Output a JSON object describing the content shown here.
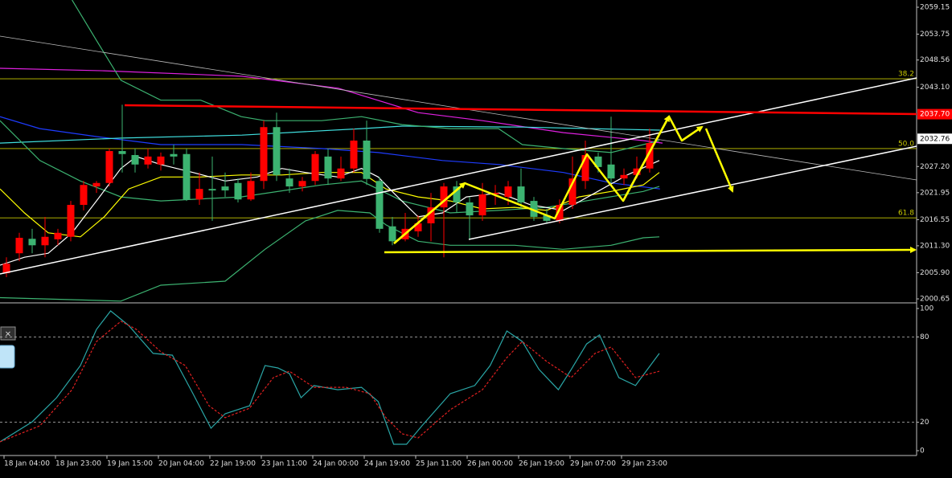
{
  "chart_data": [
    {
      "type": "candlestick",
      "xlim": [
        -0.5,
        70.75
      ],
      "ylim": [
        2000.17,
        2060.6
      ],
      "up_color": "#ff0000",
      "down_color": "#3cb371",
      "candles": {
        "open": [
          2005.8,
          2009.8,
          2012.7,
          2011.4,
          2012.6,
          2013.1,
          2019.5,
          2023.2,
          2023.9,
          2030.3,
          2029.5,
          2027.6,
          2027.6,
          2029.7,
          2029.7,
          2020.6,
          2022.7,
          2023.2,
          2023.9,
          2020.6,
          2024.3,
          2035.1,
          2024.8,
          2023.2,
          2024.3,
          2029.2,
          2024.8,
          2026.8,
          2032.4,
          2024.3,
          2015.2,
          2012.6,
          2014.2,
          2015.8,
          2019.0,
          2023.2,
          2020.0,
          2017.4,
          2021.6,
          2021.1,
          2023.2,
          2020.3,
          2017.4,
          2016.3,
          2019.5,
          2024.3,
          2029.2,
          2027.6,
          2024.8,
          2025.5,
          2026.8
        ],
        "high": [
          2009.0,
          2013.9,
          2014.7,
          2017.1,
          2014.7,
          2020.3,
          2024.3,
          2024.3,
          2030.8,
          2039.6,
          2030.8,
          2030.8,
          2030.0,
          2031.6,
          2030.8,
          2026.0,
          2029.2,
          2026.0,
          2024.8,
          2026.0,
          2036.4,
          2038.0,
          2026.8,
          2025.1,
          2030.3,
          2030.8,
          2029.2,
          2034.8,
          2036.4,
          2025.1,
          2017.1,
          2017.9,
          2017.4,
          2021.9,
          2023.9,
          2024.3,
          2021.1,
          2023.9,
          2023.5,
          2024.3,
          2026.8,
          2021.1,
          2018.7,
          2020.6,
          2029.2,
          2032.4,
          2030.0,
          2037.2,
          2026.8,
          2029.2,
          2034.8
        ],
        "low": [
          2005.0,
          2008.2,
          2009.8,
          2009.0,
          2011.4,
          2012.2,
          2018.4,
          2021.9,
          2023.2,
          2026.0,
          2026.0,
          2026.8,
          2026.4,
          2027.6,
          2020.3,
          2019.5,
          2016.3,
          2021.1,
          2020.0,
          2020.3,
          2022.7,
          2024.3,
          2021.9,
          2022.2,
          2023.5,
          2023.5,
          2024.3,
          2026.0,
          2023.5,
          2013.9,
          2011.4,
          2012.2,
          2013.1,
          2012.2,
          2009.0,
          2017.9,
          2012.6,
          2016.3,
          2019.5,
          2019.5,
          2018.7,
          2016.3,
          2015.8,
          2015.8,
          2018.7,
          2022.7,
          2026.0,
          2023.9,
          2023.5,
          2024.8,
          2026.0
        ],
        "close": [
          2007.7,
          2012.9,
          2011.4,
          2013.1,
          2013.9,
          2019.5,
          2023.5,
          2023.9,
          2030.3,
          2029.7,
          2027.6,
          2029.2,
          2029.2,
          2029.2,
          2020.6,
          2022.7,
          2022.4,
          2022.4,
          2020.6,
          2024.3,
          2035.1,
          2025.5,
          2023.2,
          2024.3,
          2029.7,
          2024.8,
          2026.8,
          2032.4,
          2024.7,
          2014.7,
          2012.2,
          2014.7,
          2015.8,
          2019.0,
          2023.2,
          2020.0,
          2017.4,
          2021.6,
          2021.9,
          2023.2,
          2020.0,
          2017.1,
          2016.3,
          2019.5,
          2024.8,
          2029.5,
          2027.1,
          2024.8,
          2025.5,
          2026.8,
          2031.9
        ]
      },
      "series": [
        {
          "color": "#e020e0",
          "x": [
            -0.5,
            7.6,
            18.3,
            25.8,
            32,
            37,
            43.3,
            49.5,
            51
          ],
          "values": [
            2046.9,
            2046.4,
            2045.3,
            2042.9,
            2038.0,
            2036.4,
            2034.0,
            2032.4,
            2031.9
          ]
        },
        {
          "color": "#1e3cff",
          "x": [
            -0.5,
            2.6,
            7,
            12,
            18.3,
            24.5,
            28.9,
            33.9,
            38.3,
            43.3,
            47,
            50.8
          ],
          "values": [
            2037.2,
            2034.8,
            2033.2,
            2031.6,
            2031.6,
            2030.8,
            2030.0,
            2028.4,
            2027.6,
            2026.0,
            2023.9,
            2022.7
          ]
        },
        {
          "color": "#40e0e0",
          "x": [
            -0.5,
            8.9,
            18.3,
            27.6,
            30.75,
            40.1,
            50.8
          ],
          "values": [
            2031.9,
            2032.9,
            2033.5,
            2034.8,
            2035.3,
            2035.1,
            2034.5
          ]
        },
        {
          "color": "#3cb371",
          "x": [
            5.1,
            7,
            8.9,
            12,
            15.1,
            18.25,
            20.1,
            24.5,
            27.6,
            30.75,
            34.5,
            38.25,
            40.1,
            43.25,
            47,
            49.5,
            50.75
          ],
          "values": [
            2060.6,
            2052.5,
            2044.5,
            2040.5,
            2040.5,
            2037.2,
            2036.4,
            2036.4,
            2037.2,
            2035.6,
            2034.8,
            2034.8,
            2031.6,
            2030.8,
            2030.0,
            2031.6,
            2032.4
          ]
        },
        {
          "color": "#3cb371",
          "x": [
            -0.5,
            2.6,
            5.75,
            8.9,
            12,
            18.25,
            24.5,
            27.6,
            30.75,
            34.5,
            38.25,
            42,
            45.75,
            49.5,
            50.75
          ],
          "values": [
            2036.4,
            2028.4,
            2024.3,
            2021.1,
            2020.3,
            2021.1,
            2023.5,
            2024.3,
            2020.3,
            2017.9,
            2018.4,
            2019.0,
            2020.6,
            2022.2,
            2023.2
          ]
        },
        {
          "color": "#3cb371",
          "x": [
            -0.5,
            8.9,
            12,
            17,
            20.1,
            23.25,
            25.75,
            28.25,
            29.5,
            32,
            34.5,
            39.5,
            43.25,
            47,
            49.5,
            50.75
          ],
          "values": [
            2000.9,
            2000.2,
            2003.4,
            2004.2,
            2010.6,
            2016.3,
            2018.4,
            2017.9,
            2015.5,
            2012.2,
            2011.4,
            2011.4,
            2010.6,
            2011.4,
            2012.9,
            2013.1
          ]
        },
        {
          "color": "#ffff00",
          "x": [
            -0.5,
            1.4,
            3.25,
            5.75,
            7.6,
            9.5,
            12,
            15.1,
            18.25,
            21.4,
            24.5,
            27.6,
            29.5,
            32,
            34.5,
            37,
            39.5,
            42,
            44.5,
            47,
            49.5,
            50.75
          ],
          "values": [
            2022.7,
            2017.9,
            2013.9,
            2013.1,
            2017.1,
            2022.7,
            2025.1,
            2025.1,
            2025.5,
            2025.5,
            2026.0,
            2026.0,
            2022.7,
            2021.1,
            2020.3,
            2018.7,
            2019.0,
            2018.4,
            2021.1,
            2022.2,
            2023.5,
            2026.0
          ]
        },
        {
          "color": "#ffffff",
          "x": [
            -0.5,
            1.4,
            3.25,
            5.1,
            7,
            8.9,
            10.1,
            12,
            14.5,
            17,
            19.5,
            21.4,
            23.25,
            25.75,
            27.6,
            28.9,
            30.1,
            32,
            33.9,
            35.75,
            38.3,
            40.75,
            43.3,
            45.75,
            48.25,
            50.75
          ],
          "values": [
            2007.4,
            2009.0,
            2009.8,
            2013.9,
            2020.3,
            2026.8,
            2029.2,
            2027.6,
            2026.0,
            2024.3,
            2025.1,
            2026.8,
            2026.0,
            2025.1,
            2026.8,
            2025.1,
            2021.9,
            2017.1,
            2017.9,
            2021.1,
            2021.9,
            2019.5,
            2018.4,
            2021.9,
            2025.5,
            2028.4
          ]
        }
      ],
      "yticks": [
        2059.15,
        2053.75,
        2048.56,
        {
          "value": 2043.1,
          "label": "2043.10"
        },
        {
          "value": 2027.2,
          "label": "2027.20"
        },
        2021.95,
        2016.55,
        {
          "value": 2011.3,
          "label": "2011.30"
        },
        {
          "value": 2005.9,
          "label": "2005.90"
        },
        2000.65
      ],
      "level_line": {
        "value": 2037.7,
        "label": "2037.70",
        "color": "#ff0000"
      },
      "bid": 2032.76,
      "fib_levels": [
        {
          "label": "38.2",
          "price": 2044.8
        },
        {
          "label": "50.0",
          "price": 2030.8
        },
        {
          "label": "61.8",
          "price": 2016.9
        }
      ],
      "fib_color": "#c8c800"
    },
    {
      "type": "line",
      "xlim": [
        -0.5,
        70.75
      ],
      "ylim": [
        0,
        100
      ],
      "yticks": [
        100,
        80,
        20,
        0
      ],
      "levels": [
        80,
        20
      ],
      "series": [
        {
          "color": "#2aa6a6",
          "dashed": false,
          "x": [
            -0.5,
            2,
            3.9,
            5.75,
            7,
            8.1,
            9.5,
            11.4,
            12.9,
            14.5,
            15.9,
            17,
            18.9,
            20.1,
            21.1,
            22,
            22.9,
            23.9,
            25.75,
            27.6,
            28.9,
            30.1,
            31.1,
            32.3,
            34.5,
            36.4,
            37.6,
            38.9,
            40.1,
            41.4,
            42.9,
            43.9,
            45.1,
            46.1,
            47.6,
            48.9,
            50.75
          ],
          "values": [
            6.2,
            20.3,
            37.3,
            59.9,
            85.3,
            98.3,
            88.1,
            68.4,
            67.2,
            40.1,
            15.8,
            26.0,
            31.6,
            59.9,
            58.2,
            54.2,
            37.3,
            45.8,
            42.9,
            44.6,
            34.5,
            4.5,
            4.5,
            17.5,
            40.1,
            45.8,
            59.9,
            84.2,
            76.8,
            57.1,
            42.9,
            57.1,
            75.1,
            81.4,
            51.4,
            45.8,
            68.4
          ]
        },
        {
          "color": "#e02020",
          "dashed": true,
          "x": [
            -0.5,
            2.6,
            5.1,
            7,
            8.9,
            10.1,
            12,
            13.9,
            15.75,
            17,
            18.9,
            20.75,
            22,
            23.9,
            26.4,
            28.25,
            29.5,
            30.75,
            32,
            34.5,
            37,
            38.9,
            40.1,
            42,
            43.9,
            45.75,
            47,
            48.9,
            50.75
          ],
          "values": [
            6.2,
            17.5,
            42.9,
            76.8,
            91.0,
            85.3,
            69.5,
            59.9,
            31.6,
            23.2,
            29.9,
            51.4,
            55.9,
            44.6,
            44.6,
            40.1,
            23.2,
            11.9,
            9.0,
            28.8,
            42.9,
            65.5,
            76.8,
            62.7,
            51.4,
            68.4,
            72.9,
            51.4,
            55.9
          ]
        }
      ],
      "xticks": [
        {
          "value": 0,
          "label": "18 Jan 04:00"
        },
        {
          "value": 4,
          "label": "18 Jan 23:00"
        },
        {
          "value": 8,
          "label": "19 Jan 15:00"
        },
        {
          "value": 12,
          "label": "20 Jan 04:00"
        },
        {
          "value": 16,
          "label": "22 Jan 19:00"
        },
        {
          "value": 20,
          "label": "23 Jan 11:00"
        },
        {
          "value": 24,
          "label": "24 Jan 00:00"
        },
        {
          "value": 28,
          "label": "24 Jan 19:00"
        },
        {
          "value": 32,
          "label": "25 Jan 11:00"
        },
        {
          "value": 36,
          "label": "26 Jan 00:00"
        },
        {
          "value": 40,
          "label": "26 Jan 19:00"
        },
        {
          "value": 44,
          "label": "29 Jan 07:00"
        },
        {
          "value": 48,
          "label": "29 Jan 23:00"
        }
      ]
    }
  ],
  "widget": {
    "close": "×"
  }
}
